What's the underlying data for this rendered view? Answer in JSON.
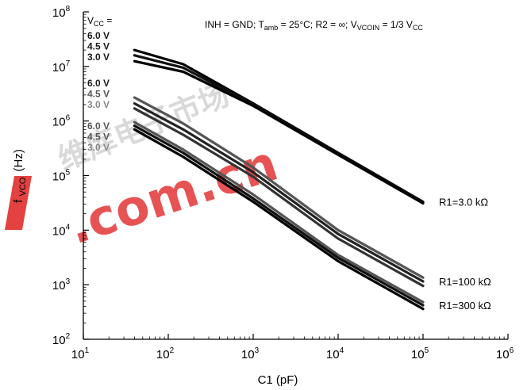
{
  "chart_data": {
    "type": "line",
    "x_scale": "log",
    "y_scale": "log",
    "xlim": [
      10,
      1000000
    ],
    "ylim": [
      100,
      100000000
    ],
    "xlabel": "C1 (pF)",
    "ylabel": "f_VCO (Hz)",
    "ylabel_parts": [
      "f",
      "VCO",
      "(Hz)"
    ],
    "x_ticks": [
      {
        "base": "10",
        "exp": "1",
        "value": 10
      },
      {
        "base": "10",
        "exp": "2",
        "value": 100
      },
      {
        "base": "10",
        "exp": "3",
        "value": 1000
      },
      {
        "base": "10",
        "exp": "4",
        "value": 10000
      },
      {
        "base": "10",
        "exp": "5",
        "value": 100000
      },
      {
        "base": "10",
        "exp": "6",
        "value": 1000000
      }
    ],
    "y_ticks": [
      {
        "base": "10",
        "exp": "2",
        "value": 100
      },
      {
        "base": "10",
        "exp": "3",
        "value": 1000
      },
      {
        "base": "10",
        "exp": "4",
        "value": 10000
      },
      {
        "base": "10",
        "exp": "5",
        "value": 100000
      },
      {
        "base": "10",
        "exp": "6",
        "value": 1000000
      },
      {
        "base": "10",
        "exp": "7",
        "value": 10000000
      },
      {
        "base": "10",
        "exp": "8",
        "value": 100000000
      }
    ],
    "grid": false,
    "vcc_header": "VCC =",
    "conditions": "INH = GND; Tamb = 25°C; R2 = ∞; VVCOIN = 1/3 VCC",
    "vcc_groups": [
      {
        "labels": [
          "6.0 V",
          "4.5 V",
          "3.0 V"
        ],
        "colors": [
          "#1a1a1a",
          "#1a1a1a",
          "#1a1a1a"
        ]
      },
      {
        "labels": [
          "6.0 V",
          "4.5 V",
          "3.0 V"
        ],
        "colors": [
          "#1a1a1a",
          "#555555",
          "#888888"
        ]
      },
      {
        "labels": [
          "6.0 V",
          "4.5 V",
          "3.0 V"
        ],
        "colors": [
          "#555555",
          "#555555",
          "#888888"
        ]
      }
    ],
    "series": [
      {
        "name": "R1=3.0 kΩ",
        "vcc": "6.0 V",
        "color": "#000000",
        "x": [
          40,
          150,
          1000,
          10000,
          100000
        ],
        "y": [
          20000000,
          11000000,
          2100000,
          260000,
          33000
        ]
      },
      {
        "name": "R1=3.0 kΩ",
        "vcc": "4.5 V",
        "color": "#111111",
        "x": [
          40,
          150,
          1000,
          10000,
          100000
        ],
        "y": [
          16000000,
          9500000,
          2000000,
          250000,
          32000
        ]
      },
      {
        "name": "R1=3.0 kΩ",
        "vcc": "3.0 V",
        "color": "#000000",
        "x": [
          40,
          150,
          1000,
          10000,
          100000
        ],
        "y": [
          12500000,
          8000000,
          1900000,
          240000,
          31000
        ]
      },
      {
        "name": "R1=100 kΩ",
        "vcc": "6.0 V",
        "color": "#555555",
        "x": [
          40,
          150,
          1000,
          10000,
          100000
        ],
        "y": [
          2700000,
          900000,
          140000,
          10000,
          1350
        ]
      },
      {
        "name": "R1=100 kΩ",
        "vcc": "4.5 V",
        "color": "#222222",
        "x": [
          40,
          150,
          1000,
          10000,
          100000
        ],
        "y": [
          2100000,
          700000,
          115000,
          8500,
          1150
        ]
      },
      {
        "name": "R1=100 kΩ",
        "vcc": "3.0 V",
        "color": "#333333",
        "x": [
          40,
          150,
          1000,
          10000,
          100000
        ],
        "y": [
          1700000,
          560000,
          95000,
          7000,
          950
        ]
      },
      {
        "name": "R1=300 kΩ",
        "vcc": "6.0 V",
        "color": "#555555",
        "x": [
          40,
          150,
          1000,
          10000,
          100000
        ],
        "y": [
          950000,
          300000,
          45000,
          3500,
          480
        ]
      },
      {
        "name": "R1=300 kΩ",
        "vcc": "4.5 V",
        "color": "#111111",
        "x": [
          40,
          150,
          1000,
          10000,
          100000
        ],
        "y": [
          820000,
          260000,
          38000,
          3100,
          420
        ]
      },
      {
        "name": "R1=300 kΩ",
        "vcc": "3.0 V",
        "color": "#000000",
        "x": [
          40,
          150,
          1000,
          10000,
          100000
        ],
        "y": [
          700000,
          220000,
          33000,
          2700,
          360
        ]
      }
    ],
    "series_labels": [
      {
        "text": "R1=3.0 kΩ",
        "x": 100000,
        "y": 33000
      },
      {
        "text": "R1=100 kΩ",
        "x": 100000,
        "y": 1150
      },
      {
        "text": "R1=300 kΩ",
        "x": 100000,
        "y": 420
      }
    ]
  },
  "watermark": {
    "text": ".com.cn",
    "glyphs": "维库电子市场",
    "color": "#e02020"
  }
}
